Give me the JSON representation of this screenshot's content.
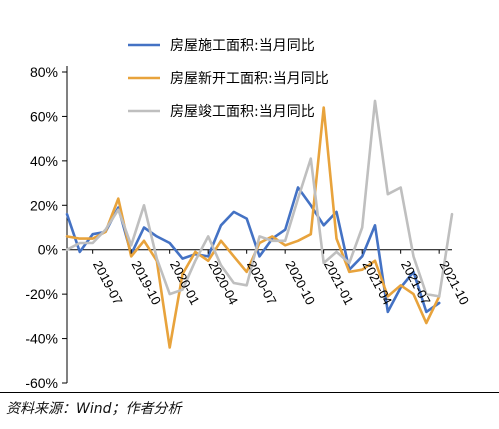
{
  "chart_data": {
    "type": "line",
    "categories": [
      "2019-05",
      "2019-06",
      "2019-07",
      "2019-08",
      "2019-09",
      "2019-10",
      "2019-11",
      "2019-12",
      "2020-01",
      "2020-02",
      "2020-03",
      "2020-04",
      "2020-05",
      "2020-06",
      "2020-07",
      "2020-08",
      "2020-09",
      "2020-10",
      "2020-11",
      "2020-12",
      "2021-01",
      "2021-02",
      "2021-03",
      "2021-04",
      "2021-05",
      "2021-06",
      "2021-07",
      "2021-08",
      "2021-09",
      "2021-10",
      "2021-11"
    ],
    "tick_labels": [
      "2019-07",
      "2019-10",
      "2020-01",
      "2020-04",
      "2020-07",
      "2020-10",
      "2021-01",
      "2021-04",
      "2021-07",
      "2021-10"
    ],
    "ylim": [
      -60,
      80
    ],
    "yticks": [
      80,
      60,
      40,
      20,
      0,
      -20,
      -40,
      -60
    ],
    "ytick_labels": [
      "80%",
      "60%",
      "40%",
      "20%",
      "0%",
      "-20%",
      "-40%",
      "-60%"
    ],
    "legend_position": "top-right",
    "series": [
      {
        "name": "房屋施工面积:当月同比",
        "color": "#4472C4",
        "values": [
          16,
          -1,
          7,
          8,
          19,
          -2,
          10,
          6,
          3,
          -4,
          -2,
          -3,
          11,
          17,
          14,
          -3,
          5,
          9,
          28,
          20,
          11,
          17,
          -9,
          -3,
          11,
          -28,
          -17,
          -10,
          -28,
          -24,
          null
        ]
      },
      {
        "name": "房屋新开工面积:当月同比",
        "color": "#E8A33C",
        "values": [
          6,
          5,
          5,
          8,
          23,
          -3,
          4,
          -5,
          -44,
          -11,
          -1,
          -5,
          4,
          -3,
          -10,
          3,
          6,
          2,
          4,
          7,
          64,
          5,
          -10,
          -9,
          -5,
          -21,
          -16,
          -20,
          -33,
          -21,
          null
        ]
      },
      {
        "name": "房屋竣工面积:当月同比",
        "color": "#BFBFBF",
        "values": [
          0,
          3,
          3,
          9,
          18,
          2,
          20,
          -4,
          -20,
          -18,
          -5,
          6,
          -7,
          -15,
          -16,
          6,
          4,
          4,
          23,
          41,
          -6,
          -1,
          -6,
          10,
          67,
          25,
          28,
          -3,
          -20,
          -21,
          16
        ]
      }
    ]
  },
  "footer": {
    "source": "资料来源：Wind；作者分析"
  }
}
